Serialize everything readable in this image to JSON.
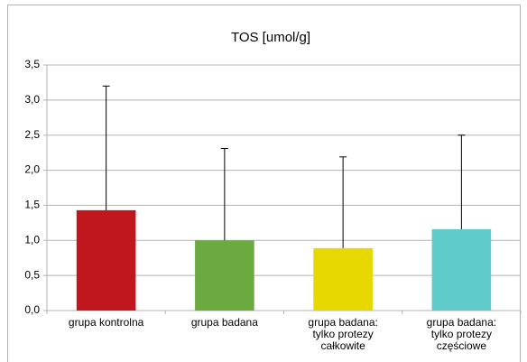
{
  "chart_data": {
    "type": "bar",
    "title": "TOS [umol/g]",
    "categories": [
      "grupa kontrolna",
      "grupa badana",
      "grupa badana: tylko protezy całkowite",
      "grupa badana: tylko protezy częściowe"
    ],
    "values": [
      1.43,
      1.0,
      0.89,
      1.16
    ],
    "errors": [
      1.77,
      1.31,
      1.3,
      1.34
    ],
    "colors": [
      "#c0171f",
      "#6aaa3f",
      "#e6d800",
      "#5fcbcb"
    ],
    "ylim": [
      0,
      3.5
    ],
    "yticks": [
      {
        "value": 0,
        "label": "0,0"
      },
      {
        "value": 0.5,
        "label": "0,5"
      },
      {
        "value": 1,
        "label": "1,0"
      },
      {
        "value": 1.5,
        "label": "1,5"
      },
      {
        "value": 2,
        "label": "2,0"
      },
      {
        "value": 2.5,
        "label": "2,5"
      },
      {
        "value": 3,
        "label": "3,0"
      },
      {
        "value": 3.5,
        "label": "3,5"
      }
    ],
    "grid": true
  }
}
